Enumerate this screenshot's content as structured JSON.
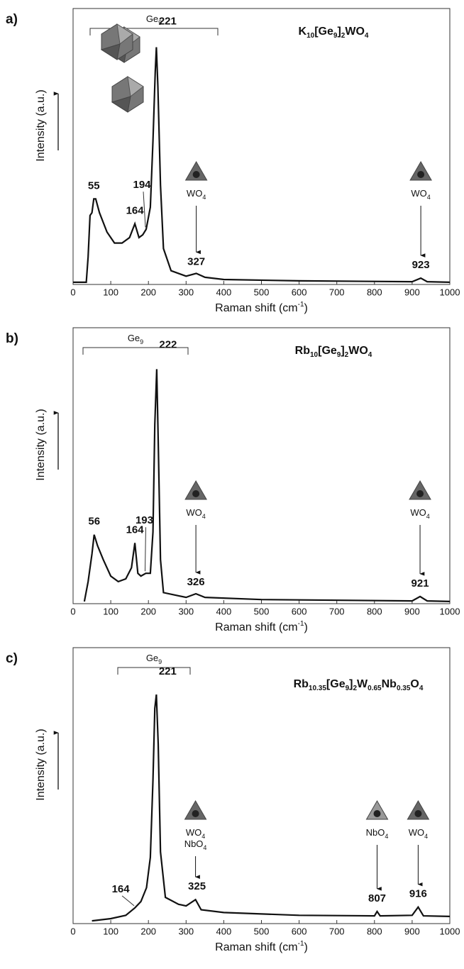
{
  "chart_data": [
    {
      "type": "line",
      "panel_label": "a)",
      "title": [
        "K",
        "10",
        "[Ge",
        "9",
        "]",
        "2",
        "WO",
        "4"
      ],
      "group_label": [
        "Ge",
        "9"
      ],
      "species": [
        {
          "lines": [
            [
              "WO",
              "4"
            ]
          ]
        },
        {
          "lines": [
            [
              "WO",
              "4"
            ]
          ]
        }
      ],
      "x": [
        0,
        35,
        40,
        45,
        50,
        55,
        60,
        70,
        90,
        110,
        130,
        150,
        164,
        175,
        185,
        194,
        205,
        212,
        218,
        221,
        225,
        232,
        240,
        260,
        300,
        327,
        350,
        400,
        600,
        900,
        923,
        940,
        1000
      ],
      "color": "#111111",
      "values": [
        0.8,
        0.8,
        10,
        25,
        26,
        31,
        31,
        26,
        19,
        15,
        15,
        17,
        22,
        17,
        18,
        20,
        28,
        52,
        77,
        86,
        72,
        36,
        13,
        5,
        3,
        4,
        2.6,
        1.8,
        1.3,
        1,
        2.3,
        1,
        0.8
      ],
      "peak_labels": [
        55,
        164,
        194,
        221,
        327,
        923
      ],
      "xlim": [
        0,
        1000
      ],
      "xticks": [
        0,
        100,
        200,
        300,
        400,
        500,
        600,
        700,
        800,
        900,
        1000
      ],
      "ylim": [
        0,
        100
      ],
      "xlabel": [
        "Raman shift (cm",
        "-1",
        ")"
      ],
      "ylabel": "Intensity (a.u.)"
    },
    {
      "type": "line",
      "panel_label": "b)",
      "title": [
        "Rb",
        "10",
        "[Ge",
        "9",
        "]",
        "2",
        "WO",
        "4"
      ],
      "group_label": [
        "Ge",
        "9"
      ],
      "species": [
        {
          "lines": [
            [
              "WO",
              "4"
            ]
          ]
        },
        {
          "lines": [
            [
              "WO",
              "4"
            ]
          ]
        }
      ],
      "x": [
        30,
        40,
        50,
        56,
        65,
        80,
        100,
        120,
        140,
        155,
        164,
        172,
        180,
        193,
        205,
        212,
        217,
        222,
        226,
        232,
        240,
        300,
        326,
        350,
        500,
        900,
        921,
        940,
        1000
      ],
      "color": "#111111",
      "values": [
        0.8,
        8,
        18,
        25,
        21,
        16,
        10,
        8,
        9,
        13,
        22,
        11,
        10,
        11,
        11,
        26,
        65,
        85,
        59,
        16,
        4,
        2.3,
        3.6,
        2.3,
        1.5,
        1,
        2.6,
        1,
        0.8
      ],
      "peak_labels": [
        56,
        164,
        193,
        222,
        326,
        921
      ],
      "xlim": [
        0,
        1000
      ],
      "xticks": [
        0,
        100,
        200,
        300,
        400,
        500,
        600,
        700,
        800,
        900,
        1000
      ],
      "ylim": [
        0,
        100
      ],
      "xlabel": [
        "Raman shift (cm",
        "-1",
        ")"
      ],
      "ylabel": "Intensity (a.u.)"
    },
    {
      "type": "line",
      "panel_label": "c)",
      "title": [
        "Rb",
        "10.35",
        "[Ge",
        "9",
        "]",
        "2",
        "W",
        "0.65",
        "Nb",
        "0.35",
        "O",
        "4"
      ],
      "group_label": [
        "Ge",
        "9"
      ],
      "species": [
        {
          "lines": [
            [
              "WO",
              "4"
            ],
            [
              "NbO",
              "4"
            ]
          ]
        },
        {
          "lines": [
            [
              "NbO",
              "4"
            ]
          ]
        },
        {
          "lines": [
            [
              "WO",
              "4"
            ]
          ]
        }
      ],
      "x": [
        50,
        100,
        140,
        164,
        180,
        195,
        205,
        212,
        217,
        221,
        226,
        232,
        245,
        280,
        300,
        325,
        340,
        400,
        600,
        800,
        807,
        815,
        900,
        916,
        930,
        1000
      ],
      "color": "#111111",
      "values": [
        1,
        1.8,
        3,
        5.7,
        8,
        13,
        24,
        52,
        78,
        83,
        65,
        26,
        9.5,
        7,
        6.4,
        8.7,
        5,
        4,
        3,
        2.8,
        4.4,
        2.8,
        3,
        6,
        2.8,
        2.6
      ],
      "peak_labels": [
        164,
        221,
        325,
        807,
        916
      ],
      "xlim": [
        0,
        1000
      ],
      "xticks": [
        0,
        100,
        200,
        300,
        400,
        500,
        600,
        700,
        800,
        900,
        1000
      ],
      "ylim": [
        0,
        100
      ],
      "xlabel": [
        "Raman shift (cm",
        "-1",
        ")"
      ],
      "ylabel": "Intensity (a.u.)"
    }
  ]
}
